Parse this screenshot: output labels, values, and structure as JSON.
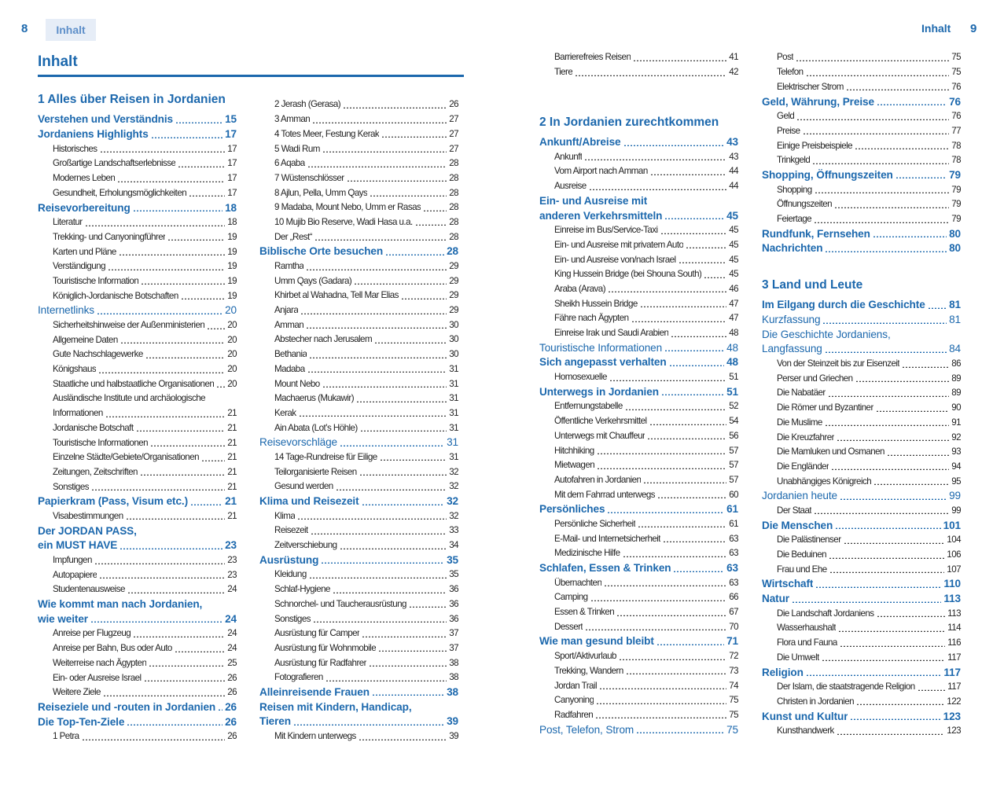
{
  "header": {
    "left_page_number": "8",
    "left_tab": "Inhalt",
    "right_tab": "Inhalt",
    "right_page_number": "9"
  },
  "title": "Inhalt",
  "columns": [
    {
      "items": [
        {
          "k": "h",
          "t": "1 Alles über Reisen in Jordanien"
        },
        {
          "k": "s",
          "t": "Verstehen und Verständnis",
          "p": "15"
        },
        {
          "k": "s",
          "t": "Jordaniens Highlights",
          "p": "17"
        },
        {
          "k": "i",
          "t": "Historisches",
          "p": "17"
        },
        {
          "k": "i",
          "t": "Großartige Landschaftserlebnisse",
          "p": "17"
        },
        {
          "k": "i",
          "t": "Modernes Leben",
          "p": "17"
        },
        {
          "k": "i",
          "t": "Gesundheit, Erholungsmöglichkeiten",
          "p": "17"
        },
        {
          "k": "s",
          "t": "Reisevorbereitung",
          "p": "18"
        },
        {
          "k": "i",
          "t": "Literatur",
          "p": "18"
        },
        {
          "k": "i",
          "t": "Trekking- und Canyoningführer",
          "p": "19"
        },
        {
          "k": "i",
          "t": "Karten und Pläne",
          "p": "19"
        },
        {
          "k": "i",
          "t": "Verständigung",
          "p": "19"
        },
        {
          "k": "i",
          "t": "Touristische Information",
          "p": "19"
        },
        {
          "k": "i",
          "t": "Königlich-Jordanische Botschaften",
          "p": "19"
        },
        {
          "k": "sn",
          "t": "Internetlinks",
          "p": "20"
        },
        {
          "k": "i",
          "t": "Sicherheitshinweise der Außenministerien",
          "p": "20"
        },
        {
          "k": "i",
          "t": "Allgemeine Daten",
          "p": "20"
        },
        {
          "k": "i",
          "t": "Gute Nachschlagewerke",
          "p": "20"
        },
        {
          "k": "i",
          "t": "Königshaus",
          "p": "20"
        },
        {
          "k": "i",
          "t": "Staatliche und halbstaatliche Organisationen",
          "p": "20"
        },
        {
          "k": "i0",
          "t": "Ausländische Institute und archäologische"
        },
        {
          "k": "i",
          "t": "Informationen",
          "p": "21"
        },
        {
          "k": "i",
          "t": "Jordanische Botschaft",
          "p": "21"
        },
        {
          "k": "i",
          "t": "Touristische Informationen",
          "p": "21"
        },
        {
          "k": "i",
          "t": "Einzelne Städte/Gebiete/Organisationen",
          "p": "21"
        },
        {
          "k": "i",
          "t": "Zeitungen, Zeitschriften",
          "p": "21"
        },
        {
          "k": "i",
          "t": "Sonstiges",
          "p": "21"
        },
        {
          "k": "s",
          "t": "Papierkram (Pass, Visum etc.)",
          "p": "21"
        },
        {
          "k": "i",
          "t": "Visabestimmungen",
          "p": "21"
        },
        {
          "k": "s0",
          "t": "Der JORDAN PASS,"
        },
        {
          "k": "s",
          "t": "ein MUST HAVE",
          "p": "23"
        },
        {
          "k": "i",
          "t": "Impfungen",
          "p": "23"
        },
        {
          "k": "i",
          "t": "Autopapiere",
          "p": "23"
        },
        {
          "k": "i",
          "t": "Studentenausweise",
          "p": "24"
        },
        {
          "k": "s0",
          "t": "Wie kommt man nach Jordanien,"
        },
        {
          "k": "s",
          "t": "wie weiter",
          "p": "24"
        },
        {
          "k": "i",
          "t": "Anreise per Flugzeug",
          "p": "24"
        },
        {
          "k": "i",
          "t": "Anreise per Bahn, Bus oder Auto",
          "p": "24"
        },
        {
          "k": "i",
          "t": "Weiterreise nach Ägypten",
          "p": "25"
        },
        {
          "k": "i",
          "t": "Ein- oder Ausreise Israel",
          "p": "26"
        },
        {
          "k": "i",
          "t": "Weitere Ziele",
          "p": "26"
        },
        {
          "k": "s",
          "t": "Reiseziele und -routen in Jordanien",
          "p": "26"
        },
        {
          "k": "s",
          "t": "Die Top-Ten-Ziele",
          "p": "26"
        },
        {
          "k": "i",
          "t": "1  Petra",
          "p": "26"
        }
      ]
    },
    {
      "items": [
        {
          "k": "i",
          "t": "2  Jerash (Gerasa)",
          "p": "26"
        },
        {
          "k": "i",
          "t": "3  Amman",
          "p": "27"
        },
        {
          "k": "i",
          "t": "4  Totes Meer, Festung Kerak",
          "p": "27"
        },
        {
          "k": "i",
          "t": "5  Wadi Rum",
          "p": "27"
        },
        {
          "k": "i",
          "t": "6  Aqaba",
          "p": "28"
        },
        {
          "k": "i",
          "t": "7  Wüstenschlösser",
          "p": "28"
        },
        {
          "k": "i",
          "t": "8  Ajlun, Pella, Umm Qays",
          "p": "28"
        },
        {
          "k": "i",
          "t": "9  Madaba, Mount Nebo, Umm er Rasas",
          "p": "28"
        },
        {
          "k": "i",
          "t": "10 Mujib Bio Reserve, Wadi Hasa u.a.",
          "p": "28"
        },
        {
          "k": "i",
          "t": "Der „Rest“",
          "p": "28"
        },
        {
          "k": "s",
          "t": "Biblische Orte besuchen",
          "p": "28"
        },
        {
          "k": "i",
          "t": "Ramtha",
          "p": "29"
        },
        {
          "k": "i",
          "t": "Umm Qays (Gadara)",
          "p": "29"
        },
        {
          "k": "i",
          "t": "Khirbet al Wahadna, Tell Mar Elias",
          "p": "29"
        },
        {
          "k": "i",
          "t": "Anjara",
          "p": "29"
        },
        {
          "k": "i",
          "t": "Amman",
          "p": "30"
        },
        {
          "k": "i",
          "t": "Abstecher nach Jerusalem",
          "p": "30"
        },
        {
          "k": "i",
          "t": "Bethania",
          "p": "30"
        },
        {
          "k": "i",
          "t": "Madaba",
          "p": "31"
        },
        {
          "k": "i",
          "t": "Mount Nebo",
          "p": "31"
        },
        {
          "k": "i",
          "t": "Machaerus (Mukawir)",
          "p": "31"
        },
        {
          "k": "i",
          "t": "Kerak",
          "p": "31"
        },
        {
          "k": "i",
          "t": "Ain Abata (Lot’s Höhle)",
          "p": "31"
        },
        {
          "k": "sn",
          "t": "Reisevorschläge",
          "p": "31"
        },
        {
          "k": "i",
          "t": "14 Tage-Rundreise für Eilige",
          "p": "31"
        },
        {
          "k": "i",
          "t": "Teilorganisierte Reisen",
          "p": "32"
        },
        {
          "k": "i",
          "t": "Gesund werden",
          "p": "32"
        },
        {
          "k": "s",
          "t": "Klima und Reisezeit",
          "p": "32"
        },
        {
          "k": "i",
          "t": "Klima",
          "p": "32"
        },
        {
          "k": "i",
          "t": "Reisezeit",
          "p": "33"
        },
        {
          "k": "i",
          "t": "Zeitverschiebung",
          "p": "34"
        },
        {
          "k": "s",
          "t": "Ausrüstung",
          "p": "35"
        },
        {
          "k": "i",
          "t": "Kleidung",
          "p": "35"
        },
        {
          "k": "i",
          "t": "Schlaf-Hygiene",
          "p": "36"
        },
        {
          "k": "i",
          "t": "Schnorchel- und Taucherausrüstung",
          "p": "36"
        },
        {
          "k": "i",
          "t": "Sonstiges",
          "p": "36"
        },
        {
          "k": "i",
          "t": "Ausrüstung für Camper",
          "p": "37"
        },
        {
          "k": "i",
          "t": "Ausrüstung für Wohnmobile",
          "p": "37"
        },
        {
          "k": "i",
          "t": "Ausrüstung für Radfahrer",
          "p": "38"
        },
        {
          "k": "i",
          "t": "Fotografieren",
          "p": "38"
        },
        {
          "k": "s",
          "t": "Alleinreisende Frauen",
          "p": "38"
        },
        {
          "k": "s0",
          "t": "Reisen mit Kindern, Handicap,"
        },
        {
          "k": "s",
          "t": "Tieren",
          "p": "39"
        },
        {
          "k": "i",
          "t": "Mit Kindern unterwegs",
          "p": "39"
        }
      ]
    },
    {
      "items": [
        {
          "k": "i",
          "t": "Barrierefreies Reisen",
          "p": "41"
        },
        {
          "k": "i",
          "t": "Tiere",
          "p": "42"
        },
        {
          "k": "h",
          "t": "2 In Jordanien zurechtkommen"
        },
        {
          "k": "s",
          "t": "Ankunft/Abreise",
          "p": "43"
        },
        {
          "k": "i",
          "t": "Ankunft",
          "p": "43"
        },
        {
          "k": "i",
          "t": "Vom Airport nach Amman",
          "p": "44"
        },
        {
          "k": "i",
          "t": "Ausreise",
          "p": "44"
        },
        {
          "k": "s0",
          "t": "Ein- und Ausreise mit"
        },
        {
          "k": "s",
          "t": "anderen Verkehrsmitteln",
          "p": "45"
        },
        {
          "k": "i",
          "t": "Einreise im Bus/Service-Taxi",
          "p": "45"
        },
        {
          "k": "i",
          "t": "Ein- und Ausreise mit privatem Auto",
          "p": "45"
        },
        {
          "k": "i",
          "t": "Ein- und Ausreise von/nach Israel",
          "p": "45"
        },
        {
          "k": "i",
          "t": "King Hussein Bridge (bei Shouna South)",
          "p": "45"
        },
        {
          "k": "i",
          "t": "Araba (Arava)",
          "p": "46"
        },
        {
          "k": "i",
          "t": "Sheikh Hussein Bridge",
          "p": "47"
        },
        {
          "k": "i",
          "t": "Fähre nach Ägypten",
          "p": "47"
        },
        {
          "k": "i",
          "t": "Einreise Irak und Saudi Arabien",
          "p": "48"
        },
        {
          "k": "sn",
          "t": "Touristische Informationen",
          "p": "48"
        },
        {
          "k": "s",
          "t": "Sich angepasst verhalten",
          "p": "48"
        },
        {
          "k": "i",
          "t": "Homosexuelle",
          "p": "51"
        },
        {
          "k": "s",
          "t": "Unterwegs in Jordanien",
          "p": "51"
        },
        {
          "k": "i",
          "t": "Entfernungstabelle",
          "p": "52"
        },
        {
          "k": "i",
          "t": "Öffentliche Verkehrsmittel",
          "p": "54"
        },
        {
          "k": "i",
          "t": "Unterwegs mit Chauffeur",
          "p": "56"
        },
        {
          "k": "i",
          "t": "Hitchhiking",
          "p": "57"
        },
        {
          "k": "i",
          "t": "Mietwagen",
          "p": "57"
        },
        {
          "k": "i",
          "t": "Autofahren in Jordanien",
          "p": "57"
        },
        {
          "k": "i",
          "t": "Mit dem Fahrrad unterwegs",
          "p": "60"
        },
        {
          "k": "s",
          "t": "Persönliches",
          "p": "61"
        },
        {
          "k": "i",
          "t": "Persönliche Sicherheit",
          "p": "61"
        },
        {
          "k": "i",
          "t": "E-Mail- und Internetsicherheit",
          "p": "63"
        },
        {
          "k": "i",
          "t": "Medizinische Hilfe",
          "p": "63"
        },
        {
          "k": "s",
          "t": "Schlafen, Essen & Trinken",
          "p": "63"
        },
        {
          "k": "i",
          "t": "Übernachten",
          "p": "63"
        },
        {
          "k": "i",
          "t": "Camping",
          "p": "66"
        },
        {
          "k": "i",
          "t": "Essen & Trinken",
          "p": "67"
        },
        {
          "k": "i",
          "t": "Dessert",
          "p": "70"
        },
        {
          "k": "s",
          "t": "Wie man gesund bleibt",
          "p": "71"
        },
        {
          "k": "i",
          "t": "Sport/Aktivurlaub",
          "p": "72"
        },
        {
          "k": "i",
          "t": "Trekking, Wandern",
          "p": "73"
        },
        {
          "k": "i",
          "t": "Jordan Trail",
          "p": "74"
        },
        {
          "k": "i",
          "t": "Canyoning",
          "p": "75"
        },
        {
          "k": "i",
          "t": "Radfahren",
          "p": "75"
        },
        {
          "k": "sn",
          "t": "Post, Telefon, Strom",
          "p": "75"
        }
      ]
    },
    {
      "items": [
        {
          "k": "i",
          "t": "Post",
          "p": "75"
        },
        {
          "k": "i",
          "t": "Telefon",
          "p": "75"
        },
        {
          "k": "i",
          "t": "Elektrischer Strom",
          "p": "76"
        },
        {
          "k": "s",
          "t": "Geld, Währung, Preise",
          "p": "76"
        },
        {
          "k": "i",
          "t": "Geld",
          "p": "76"
        },
        {
          "k": "i",
          "t": "Preise",
          "p": "77"
        },
        {
          "k": "i",
          "t": "Einige Preisbeispiele",
          "p": "78"
        },
        {
          "k": "i",
          "t": "Trinkgeld",
          "p": "78"
        },
        {
          "k": "s",
          "t": "Shopping, Öffnungszeiten",
          "p": "79"
        },
        {
          "k": "i",
          "t": "Shopping",
          "p": "79"
        },
        {
          "k": "i",
          "t": "Öffnungszeiten",
          "p": "79"
        },
        {
          "k": "i",
          "t": "Feiertage",
          "p": "79"
        },
        {
          "k": "s",
          "t": "Rundfunk, Fernsehen",
          "p": "80"
        },
        {
          "k": "s",
          "t": "Nachrichten",
          "p": "80"
        },
        {
          "k": "h",
          "t": "3 Land und Leute"
        },
        {
          "k": "s",
          "t": "Im Eilgang durch die Geschichte",
          "p": "81"
        },
        {
          "k": "sn",
          "t": "Kurzfassung",
          "p": "81"
        },
        {
          "k": "sn0",
          "t": "Die Geschichte Jordaniens,"
        },
        {
          "k": "sn",
          "t": "Langfassung",
          "p": "84"
        },
        {
          "k": "i",
          "t": "Von der Steinzeit bis zur Eisenzeit",
          "p": "86"
        },
        {
          "k": "i",
          "t": "Perser und Griechen",
          "p": "89"
        },
        {
          "k": "i",
          "t": "Die Nabatäer",
          "p": "89"
        },
        {
          "k": "i",
          "t": "Die Römer und Byzantiner",
          "p": "90"
        },
        {
          "k": "i",
          "t": "Die Muslime",
          "p": "91"
        },
        {
          "k": "i",
          "t": "Die Kreuzfahrer",
          "p": "92"
        },
        {
          "k": "i",
          "t": "Die Mamluken und Osmanen",
          "p": "93"
        },
        {
          "k": "i",
          "t": "Die Engländer",
          "p": "94"
        },
        {
          "k": "i",
          "t": "Unabhängiges Königreich",
          "p": "95"
        },
        {
          "k": "sn",
          "t": "Jordanien heute",
          "p": "99"
        },
        {
          "k": "i",
          "t": "Der Staat",
          "p": "99"
        },
        {
          "k": "s",
          "t": "Die Menschen",
          "p": "101"
        },
        {
          "k": "i",
          "t": "Die Palästinenser",
          "p": "104"
        },
        {
          "k": "i",
          "t": "Die Beduinen",
          "p": "106"
        },
        {
          "k": "i",
          "t": "Frau und Ehe",
          "p": "107"
        },
        {
          "k": "s",
          "t": "Wirtschaft",
          "p": "110"
        },
        {
          "k": "s",
          "t": "Natur",
          "p": "113"
        },
        {
          "k": "i",
          "t": "Die Landschaft Jordaniens",
          "p": "113"
        },
        {
          "k": "i",
          "t": "Wasserhaushalt",
          "p": "114"
        },
        {
          "k": "i",
          "t": "Flora und Fauna",
          "p": "116"
        },
        {
          "k": "i",
          "t": "Die Umwelt",
          "p": "117"
        },
        {
          "k": "s",
          "t": "Religion",
          "p": "117"
        },
        {
          "k": "i",
          "t": "Der Islam, die staatstragende Religion",
          "p": "117"
        },
        {
          "k": "i",
          "t": "Christen in Jordanien",
          "p": "122"
        },
        {
          "k": "s",
          "t": "Kunst und Kultur",
          "p": "123"
        },
        {
          "k": "i",
          "t": "Kunsthandwerk",
          "p": "123"
        }
      ]
    }
  ]
}
